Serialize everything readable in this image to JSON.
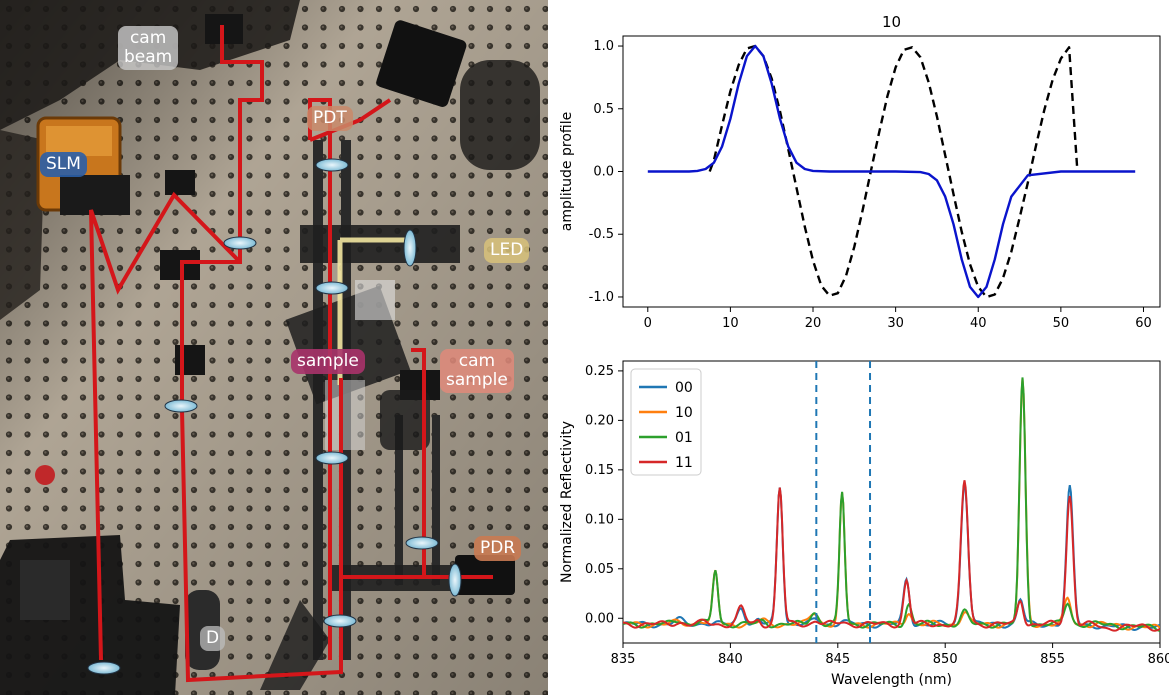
{
  "photo": {
    "labels": {
      "cam_beam": "cam\nbeam",
      "pdt": "PDT",
      "slm": "SLM",
      "led": "LED",
      "sample": "sample",
      "cam_sample": "cam\nsample",
      "pdr": "PDR",
      "d": "D"
    },
    "label_colors": {
      "cam_beam": "#c9c9c9",
      "pdt": "#c98a6a",
      "slm": "#2a5fa8",
      "led": "#d8c27a",
      "sample": "#a8336a",
      "cam_sample": "#e08a7a",
      "pdr": "#c97a52",
      "d": "#bdbdbd"
    },
    "beam_color": "#d4161a",
    "led_beam_color": "#f2e6a0"
  },
  "chart_data": [
    {
      "type": "line",
      "title": "10",
      "xlabel": "",
      "ylabel": "amplitude profile",
      "xlim": [
        -3,
        62
      ],
      "ylim": [
        -1.08,
        1.08
      ],
      "xticks": [
        0,
        10,
        20,
        30,
        40,
        50,
        60
      ],
      "yticks": [
        -1.0,
        -0.5,
        0.0,
        0.5,
        1.0
      ],
      "grid": false,
      "series": [
        {
          "style": "dashed",
          "color": "#000000",
          "x": [
            7.5,
            8,
            9,
            10,
            11,
            12,
            13,
            14,
            15,
            16,
            17,
            18,
            19,
            20,
            21,
            22,
            23,
            24,
            25,
            26,
            27,
            28,
            29,
            30,
            31,
            32,
            33,
            34,
            35,
            36,
            37,
            38,
            39,
            40,
            41,
            42,
            43,
            44,
            45,
            46,
            47,
            48,
            49,
            50,
            51,
            52
          ],
          "y": [
            0.0,
            0.09,
            0.37,
            0.64,
            0.85,
            0.98,
            1.0,
            0.92,
            0.74,
            0.48,
            0.18,
            -0.13,
            -0.44,
            -0.71,
            -0.91,
            -0.99,
            -0.97,
            -0.83,
            -0.6,
            -0.31,
            0.0,
            0.31,
            0.6,
            0.83,
            0.97,
            0.99,
            0.91,
            0.71,
            0.44,
            0.13,
            -0.18,
            -0.48,
            -0.74,
            -0.92,
            -1.0,
            -0.98,
            -0.85,
            -0.64,
            -0.37,
            -0.09,
            0.21,
            0.49,
            0.73,
            0.9,
            0.99,
            0.0
          ]
        },
        {
          "style": "solid",
          "color": "#0a14cc",
          "x": [
            0,
            5,
            6,
            7,
            8,
            9,
            10,
            11,
            12,
            13,
            14,
            15,
            16,
            17,
            18,
            19,
            20,
            22,
            25,
            30,
            33,
            34,
            35,
            36,
            37,
            38,
            39,
            40,
            41,
            42,
            43,
            44,
            46,
            50,
            59
          ],
          "y": [
            0.0,
            0.0,
            0.005,
            0.02,
            0.07,
            0.2,
            0.42,
            0.7,
            0.92,
            1.0,
            0.92,
            0.7,
            0.42,
            0.2,
            0.07,
            0.02,
            0.005,
            0.0,
            0.0,
            0.0,
            -0.005,
            -0.02,
            -0.07,
            -0.2,
            -0.42,
            -0.7,
            -0.92,
            -1.0,
            -0.92,
            -0.7,
            -0.42,
            -0.2,
            -0.03,
            0.0,
            0.0
          ]
        }
      ]
    },
    {
      "type": "line",
      "title": "",
      "xlabel": "Wavelength (nm)",
      "ylabel": "Normalized Reflectivity",
      "xlim": [
        835,
        860
      ],
      "ylim": [
        -0.025,
        0.26
      ],
      "xticks": [
        835,
        840,
        845,
        850,
        855,
        860
      ],
      "yticks": [
        0.0,
        0.05,
        0.1,
        0.15,
        0.2,
        0.25
      ],
      "ytick_labels": [
        "0.00",
        "0.05",
        "0.10",
        "0.15",
        "0.20",
        "0.25"
      ],
      "grid": false,
      "legend": "top-left",
      "vlines": [
        844.0,
        846.5
      ],
      "vline_color": "#1f77b4",
      "series": [
        {
          "name": "00",
          "color": "#1f77b4",
          "peaks": [
            [
              837.6,
              0.004,
              0.4
            ],
            [
              838.8,
              0.002,
              0.3
            ],
            [
              840.5,
              0.018,
              0.3
            ],
            [
              841.3,
              0.004,
              0.2
            ],
            [
              842.3,
              0.14,
              0.25
            ],
            [
              844.0,
              0.005,
              0.3
            ],
            [
              845.2,
              0.003,
              0.3
            ],
            [
              848.2,
              0.045,
              0.25
            ],
            [
              850.9,
              0.145,
              0.3
            ],
            [
              853.5,
              0.025,
              0.25
            ],
            [
              855.8,
              0.137,
              0.28
            ],
            [
              857.5,
              -0.003,
              0.6
            ]
          ]
        },
        {
          "name": "10",
          "color": "#ff7f0e",
          "peaks": [
            [
              837.6,
              0.002,
              0.4
            ],
            [
              838.6,
              0.004,
              0.3
            ],
            [
              839.3,
              0.052,
              0.22
            ],
            [
              841.5,
              0.004,
              0.3
            ],
            [
              843.9,
              0.012,
              0.35
            ],
            [
              845.2,
              0.13,
              0.22
            ],
            [
              848.3,
              0.013,
              0.25
            ],
            [
              850.9,
              0.013,
              0.3
            ],
            [
              853.6,
              0.246,
              0.25
            ],
            [
              855.7,
              0.025,
              0.28
            ]
          ]
        },
        {
          "name": "01",
          "color": "#2ca02c",
          "peaks": [
            [
              837.6,
              0.004,
              0.4
            ],
            [
              838.6,
              0.003,
              0.3
            ],
            [
              839.3,
              0.055,
              0.22
            ],
            [
              841.5,
              0.003,
              0.3
            ],
            [
              843.9,
              0.012,
              0.35
            ],
            [
              845.2,
              0.133,
              0.22
            ],
            [
              848.3,
              0.02,
              0.25
            ],
            [
              850.9,
              0.012,
              0.3
            ],
            [
              853.6,
              0.248,
              0.25
            ],
            [
              855.7,
              0.022,
              0.28
            ]
          ]
        },
        {
          "name": "11",
          "color": "#d62728",
          "peaks": [
            [
              837.6,
              0.002,
              0.4
            ],
            [
              838.8,
              0.002,
              0.3
            ],
            [
              840.5,
              0.017,
              0.3
            ],
            [
              841.3,
              0.004,
              0.2
            ],
            [
              842.3,
              0.138,
              0.25
            ],
            [
              844.0,
              0.004,
              0.3
            ],
            [
              845.2,
              0.002,
              0.3
            ],
            [
              848.2,
              0.044,
              0.25
            ],
            [
              850.9,
              0.144,
              0.3
            ],
            [
              853.5,
              0.025,
              0.25
            ],
            [
              855.8,
              0.13,
              0.28
            ],
            [
              857.5,
              -0.004,
              0.6
            ]
          ]
        }
      ]
    }
  ]
}
